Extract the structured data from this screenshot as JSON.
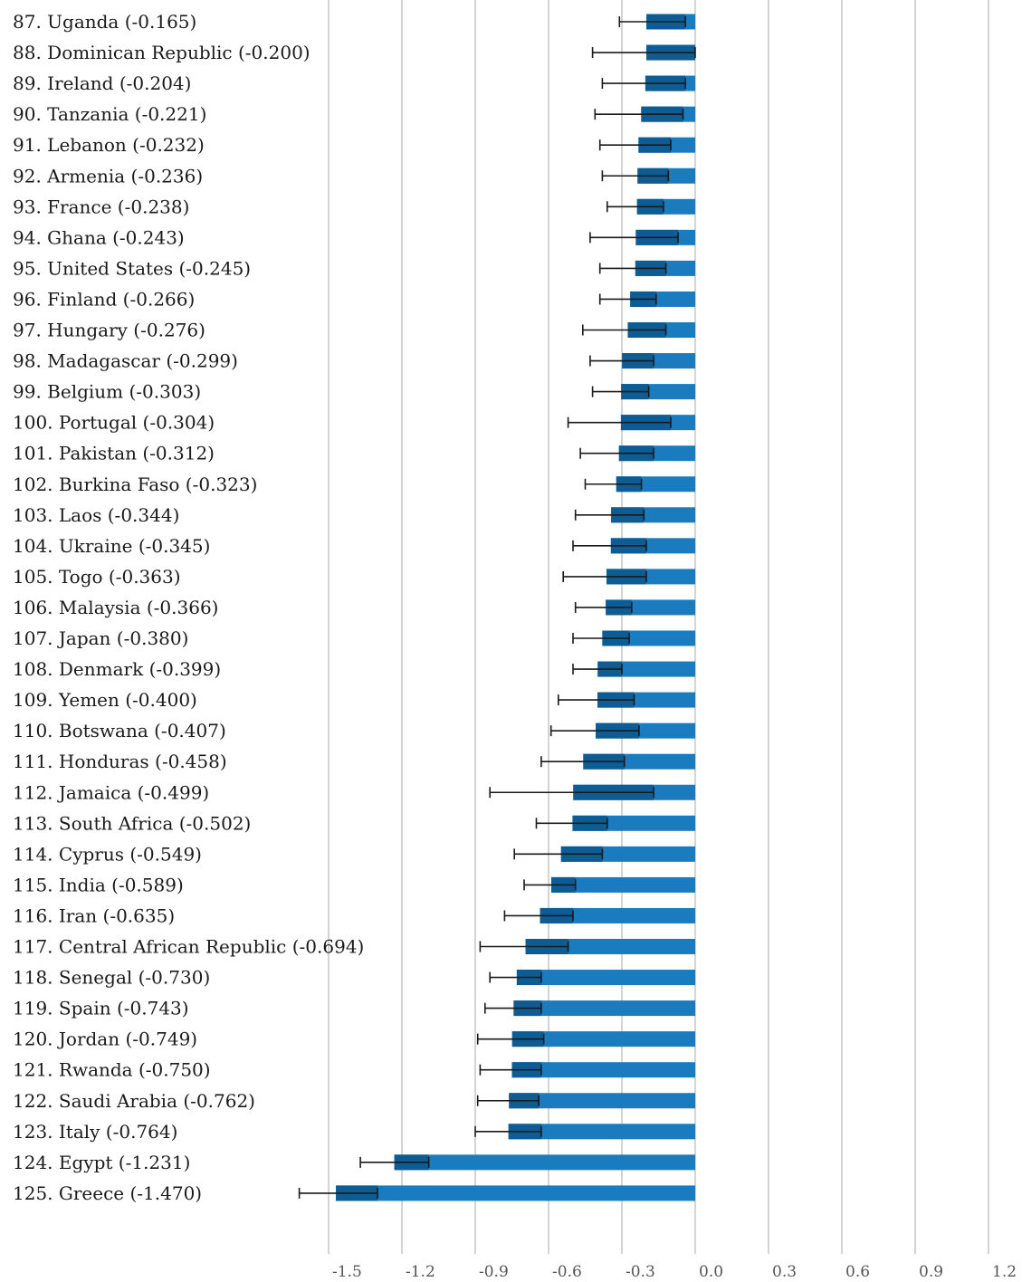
{
  "chart_data": {
    "type": "bar",
    "orientation": "horizontal",
    "title": "",
    "xlabel": "",
    "ylabel": "",
    "xlim": [
      -1.6,
      1.2
    ],
    "grid": true,
    "bar_color": "#1a7bbf",
    "band_color": "#0d5c93",
    "error_color": "#1a1a1a",
    "x_ticks": [
      "-1.5",
      "-1.2",
      "-0.9",
      "-0.6",
      "-0.3",
      "0.0",
      "0.3",
      "0.6",
      "0.9",
      "1.2"
    ],
    "x_tick_values": [
      -1.5,
      -1.2,
      -0.9,
      -0.6,
      -0.3,
      0.0,
      0.3,
      0.6,
      0.9,
      1.2
    ],
    "rows": [
      {
        "label": "87. Uganda (-0.165)",
        "value": -0.165,
        "err_low": -0.31,
        "band_low": -0.2,
        "band_high": -0.04
      },
      {
        "label": "88. Dominican Republic (-0.200)",
        "value": -0.2,
        "err_low": -0.42,
        "band_low": -0.2,
        "band_high": 0.0
      },
      {
        "label": "89. Ireland (-0.204)",
        "value": -0.204,
        "err_low": -0.38,
        "band_low": -0.204,
        "band_high": -0.04
      },
      {
        "label": "90. Tanzania (-0.221)",
        "value": -0.221,
        "err_low": -0.41,
        "band_low": -0.221,
        "band_high": -0.05
      },
      {
        "label": "91. Lebanon (-0.232)",
        "value": -0.232,
        "err_low": -0.39,
        "band_low": -0.232,
        "band_high": -0.1
      },
      {
        "label": "92. Armenia (-0.236)",
        "value": -0.236,
        "err_low": -0.38,
        "band_low": -0.236,
        "band_high": -0.11
      },
      {
        "label": "93. France (-0.238)",
        "value": -0.238,
        "err_low": -0.36,
        "band_low": -0.238,
        "band_high": -0.13
      },
      {
        "label": "94. Ghana (-0.243)",
        "value": -0.243,
        "err_low": -0.43,
        "band_low": -0.243,
        "band_high": -0.07
      },
      {
        "label": "95. United States (-0.245)",
        "value": -0.245,
        "err_low": -0.39,
        "band_low": -0.245,
        "band_high": -0.12
      },
      {
        "label": "96. Finland (-0.266)",
        "value": -0.266,
        "err_low": -0.39,
        "band_low": -0.266,
        "band_high": -0.16
      },
      {
        "label": "97. Hungary (-0.276)",
        "value": -0.276,
        "err_low": -0.46,
        "band_low": -0.276,
        "band_high": -0.12
      },
      {
        "label": "98. Madagascar (-0.299)",
        "value": -0.299,
        "err_low": -0.43,
        "band_low": -0.299,
        "band_high": -0.17
      },
      {
        "label": "99. Belgium (-0.303)",
        "value": -0.303,
        "err_low": -0.42,
        "band_low": -0.303,
        "band_high": -0.19
      },
      {
        "label": "100. Portugal (-0.304)",
        "value": -0.304,
        "err_low": -0.52,
        "band_low": -0.304,
        "band_high": -0.1
      },
      {
        "label": "101. Pakistan (-0.312)",
        "value": -0.312,
        "err_low": -0.47,
        "band_low": -0.312,
        "band_high": -0.17
      },
      {
        "label": "102. Burkina Faso (-0.323)",
        "value": -0.323,
        "err_low": -0.45,
        "band_low": -0.323,
        "band_high": -0.22
      },
      {
        "label": "103. Laos (-0.344)",
        "value": -0.344,
        "err_low": -0.49,
        "band_low": -0.344,
        "band_high": -0.21
      },
      {
        "label": "104. Ukraine (-0.345)",
        "value": -0.345,
        "err_low": -0.5,
        "band_low": -0.345,
        "band_high": -0.2
      },
      {
        "label": "105. Togo (-0.363)",
        "value": -0.363,
        "err_low": -0.54,
        "band_low": -0.363,
        "band_high": -0.2
      },
      {
        "label": "106. Malaysia (-0.366)",
        "value": -0.366,
        "err_low": -0.49,
        "band_low": -0.366,
        "band_high": -0.26
      },
      {
        "label": "107. Japan (-0.380)",
        "value": -0.38,
        "err_low": -0.5,
        "band_low": -0.38,
        "band_high": -0.27
      },
      {
        "label": "108. Denmark (-0.399)",
        "value": -0.399,
        "err_low": -0.5,
        "band_low": -0.399,
        "band_high": -0.3
      },
      {
        "label": "109. Yemen (-0.400)",
        "value": -0.4,
        "err_low": -0.56,
        "band_low": -0.4,
        "band_high": -0.25
      },
      {
        "label": "110. Botswana (-0.407)",
        "value": -0.407,
        "err_low": -0.59,
        "band_low": -0.407,
        "band_high": -0.23
      },
      {
        "label": "111. Honduras (-0.458)",
        "value": -0.458,
        "err_low": -0.63,
        "band_low": -0.458,
        "band_high": -0.29
      },
      {
        "label": "112. Jamaica (-0.499)",
        "value": -0.499,
        "err_low": -0.84,
        "band_low": -0.499,
        "band_high": -0.17
      },
      {
        "label": "113. South Africa (-0.502)",
        "value": -0.502,
        "err_low": -0.65,
        "band_low": -0.502,
        "band_high": -0.36
      },
      {
        "label": "114. Cyprus (-0.549)",
        "value": -0.549,
        "err_low": -0.74,
        "band_low": -0.549,
        "band_high": -0.38
      },
      {
        "label": "115. India (-0.589)",
        "value": -0.589,
        "err_low": -0.7,
        "band_low": -0.589,
        "band_high": -0.49
      },
      {
        "label": "116. Iran (-0.635)",
        "value": -0.635,
        "err_low": -0.78,
        "band_low": -0.635,
        "band_high": -0.5
      },
      {
        "label": "117. Central African Republic (-0.694)",
        "value": -0.694,
        "err_low": -0.88,
        "band_low": -0.694,
        "band_high": -0.52
      },
      {
        "label": "118. Senegal (-0.730)",
        "value": -0.73,
        "err_low": -0.84,
        "band_low": -0.73,
        "band_high": -0.63
      },
      {
        "label": "119. Spain (-0.743)",
        "value": -0.743,
        "err_low": -0.86,
        "band_low": -0.743,
        "band_high": -0.63
      },
      {
        "label": "120. Jordan (-0.749)",
        "value": -0.749,
        "err_low": -0.89,
        "band_low": -0.749,
        "band_high": -0.62
      },
      {
        "label": "121. Rwanda (-0.750)",
        "value": -0.75,
        "err_low": -0.88,
        "band_low": -0.75,
        "band_high": -0.63
      },
      {
        "label": "122. Saudi Arabia (-0.762)",
        "value": -0.762,
        "err_low": -0.89,
        "band_low": -0.762,
        "band_high": -0.64
      },
      {
        "label": "123. Italy (-0.764)",
        "value": -0.764,
        "err_low": -0.9,
        "band_low": -0.764,
        "band_high": -0.63
      },
      {
        "label": "124. Egypt (-1.231)",
        "value": -1.231,
        "err_low": -1.37,
        "band_low": -1.231,
        "band_high": -1.09
      },
      {
        "label": "125. Greece (-1.470)",
        "value": -1.47,
        "err_low": -1.62,
        "band_low": -1.47,
        "band_high": -1.3
      }
    ]
  }
}
